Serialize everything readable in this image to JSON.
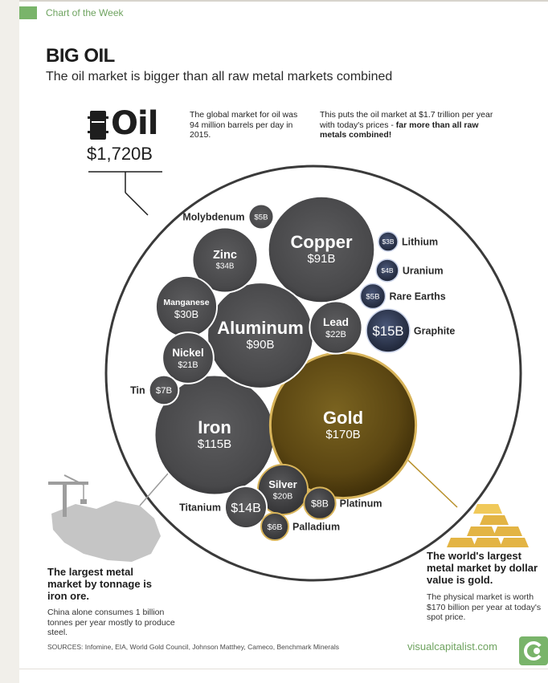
{
  "header": {
    "kicker": "Chart of the Week",
    "title": "BIG OIL",
    "subtitle": "The oil market is bigger than all raw metal markets combined"
  },
  "oil": {
    "label": "Oil",
    "value": "$1,720B",
    "note_left": "The global market for oil was 94 million barrels per day in 2015.",
    "note_right_plain": "This puts the oil market at $1.7 trillion per year with today's prices - ",
    "note_right_bold": "far more than all raw metals combined!"
  },
  "chart_data": {
    "type": "bubble",
    "units": "billion USD",
    "container": {
      "name": "Oil",
      "value": 1720
    },
    "bubbles": [
      {
        "name": "Iron",
        "label": "Iron",
        "display": "$115B",
        "value": 115,
        "group": "base",
        "label_pos": "inside"
      },
      {
        "name": "Gold",
        "label": "Gold",
        "display": "$170B",
        "value": 170,
        "group": "precious",
        "label_pos": "inside"
      },
      {
        "name": "Copper",
        "label": "Copper",
        "display": "$91B",
        "value": 91,
        "group": "base",
        "label_pos": "inside"
      },
      {
        "name": "Aluminum",
        "label": "Aluminum",
        "display": "$90B",
        "value": 90,
        "group": "base",
        "label_pos": "inside"
      },
      {
        "name": "Zinc",
        "label": "Zinc",
        "display": "$34B",
        "value": 34,
        "group": "base",
        "label_pos": "inside"
      },
      {
        "name": "Manganese",
        "label": "Manganese",
        "display": "$30B",
        "value": 30,
        "group": "base",
        "label_pos": "inside"
      },
      {
        "name": "Lead",
        "label": "Lead",
        "display": "$22B",
        "value": 22,
        "group": "base",
        "label_pos": "inside"
      },
      {
        "name": "Nickel",
        "label": "Nickel",
        "display": "$21B",
        "value": 21,
        "group": "base",
        "label_pos": "inside"
      },
      {
        "name": "Silver",
        "label": "Silver",
        "display": "$20B",
        "value": 20,
        "group": "precious",
        "label_pos": "inside"
      },
      {
        "name": "Graphite",
        "label": "Graphite",
        "display": "$15B",
        "value": 15,
        "group": "minor",
        "label_pos": "right"
      },
      {
        "name": "Titanium",
        "label": "Titanium",
        "display": "$14B",
        "value": 14,
        "group": "base",
        "label_pos": "left"
      },
      {
        "name": "Platinum",
        "label": "Platinum",
        "display": "$8B",
        "value": 8,
        "group": "precious",
        "label_pos": "right"
      },
      {
        "name": "Tin",
        "label": "Tin",
        "display": "$7B",
        "value": 7,
        "group": "base",
        "label_pos": "left"
      },
      {
        "name": "Palladium",
        "label": "Palladium",
        "display": "$6B",
        "value": 6,
        "group": "precious",
        "label_pos": "right"
      },
      {
        "name": "Molybdenum",
        "label": "Molybdenum",
        "display": "$5B",
        "value": 5,
        "group": "base",
        "label_pos": "left"
      },
      {
        "name": "Rare Earths",
        "label": "Rare Earths",
        "display": "$5B",
        "value": 5,
        "group": "minor",
        "label_pos": "right"
      },
      {
        "name": "Uranium",
        "label": "Uranium",
        "display": "$4B",
        "value": 4,
        "group": "minor",
        "label_pos": "right"
      },
      {
        "name": "Lithium",
        "label": "Lithium",
        "display": "$3B",
        "value": 3,
        "group": "minor",
        "label_pos": "right"
      }
    ]
  },
  "left_callout": {
    "heading": "The largest metal market by tonnage is iron ore.",
    "body": "China alone consumes 1 billion tonnes per year mostly to produce steel."
  },
  "right_callout": {
    "heading": "The world's largest metal market by dollar value is gold.",
    "body": "The physical market is worth $170 billion per year at today's spot price."
  },
  "footer": {
    "sources": "SOURCES: Infomine, EIA, World Gold Council, Johnson Matthey, Cameco, Benchmark Minerals",
    "brand": "visualcapitalist.com"
  },
  "colors": {
    "base_metal": "#4d4d4f",
    "gold": "#6b5416",
    "gold_rim": "#d8b45a",
    "minor_metal": "#2a3247",
    "accent_green": "#79b46a"
  }
}
